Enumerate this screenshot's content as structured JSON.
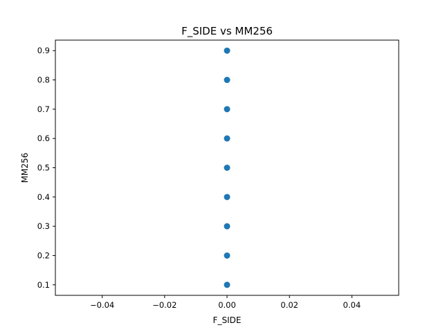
{
  "chart_data": {
    "type": "scatter",
    "title": "F_SIDE vs MM256",
    "xlabel": "F_SIDE",
    "ylabel": "MM256",
    "xlim": [
      -0.055,
      0.055
    ],
    "ylim": [
      0.064,
      0.936
    ],
    "x_ticks": [
      -0.04,
      -0.02,
      0.0,
      0.02,
      0.04
    ],
    "x_tick_labels": [
      "−0.04",
      "−0.02",
      "0.00",
      "0.02",
      "0.04"
    ],
    "y_ticks": [
      0.1,
      0.2,
      0.3,
      0.4,
      0.5,
      0.6,
      0.7,
      0.8,
      0.9
    ],
    "y_tick_labels": [
      "0.1",
      "0.2",
      "0.3",
      "0.4",
      "0.5",
      "0.6",
      "0.7",
      "0.8",
      "0.9"
    ],
    "grid": false,
    "legend": "none",
    "series": [
      {
        "color": "#1f77b4",
        "x": [
          0.0,
          0.0,
          0.0,
          0.0,
          0.0,
          0.0,
          0.0,
          0.0,
          0.0
        ],
        "y": [
          0.1,
          0.2,
          0.3,
          0.4,
          0.5,
          0.6,
          0.7,
          0.8,
          0.9
        ]
      }
    ]
  }
}
